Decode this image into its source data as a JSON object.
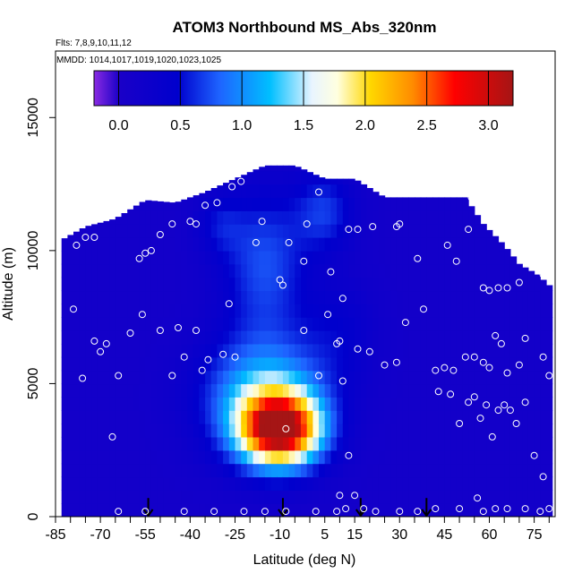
{
  "chart_data": {
    "type": "heatmap",
    "title": "ATOM3 Northbound MS_Abs_320nm",
    "subtitle_flights": "Flts: 7,8,9,10,11,12",
    "subtitle_dates": "MMDD: 1014,1017,1019,1020,1023,1025",
    "xlabel": "Latitude (deg N)",
    "ylabel": "Altitude (m)",
    "xlim": [
      -85,
      82
    ],
    "ylim": [
      0,
      17500
    ],
    "x_ticks": [
      -85,
      -70,
      -55,
      -40,
      -25,
      -10,
      5,
      15,
      30,
      45,
      60,
      75
    ],
    "y_ticks": [
      0,
      5000,
      10000,
      15000
    ],
    "colorbar": {
      "min": -0.2,
      "max": 3.2,
      "ticks": [
        0.0,
        0.5,
        1.0,
        1.5,
        2.0,
        2.5,
        3.0
      ],
      "tick_labels": [
        "0.0",
        "0.5",
        "1.0",
        "1.5",
        "2.0",
        "2.5",
        "3.0"
      ]
    },
    "arrows_latitude": [
      -54,
      -9,
      17,
      39
    ],
    "field_summary": [
      {
        "region": "plume core",
        "lat_range": [
          -22,
          3
        ],
        "alt_range": [
          2000,
          4500
        ],
        "value": 3.0
      },
      {
        "region": "plume halo",
        "lat_range": [
          -40,
          10
        ],
        "alt_range": [
          500,
          5500
        ],
        "value": 1.5
      },
      {
        "region": "upper tropical band",
        "lat_range": [
          -20,
          10
        ],
        "alt_range": [
          6000,
          13000
        ],
        "value": 1.0
      },
      {
        "region": "background",
        "lat_range": [
          -83,
          80
        ],
        "alt_range": [
          0,
          11000
        ],
        "value": 0.1
      }
    ],
    "sample_points": [
      [
        -79,
        7800
      ],
      [
        -76,
        5200
      ],
      [
        -72,
        6600
      ],
      [
        -70,
        6200
      ],
      [
        -68,
        6500
      ],
      [
        -66,
        3000
      ],
      [
        -64,
        5300
      ],
      [
        -60,
        6900
      ],
      [
        -56,
        7600
      ],
      [
        -50,
        7000
      ],
      [
        -46,
        5300
      ],
      [
        -44,
        7100
      ],
      [
        -42,
        6000
      ],
      [
        -38,
        7000
      ],
      [
        -36,
        5500
      ],
      [
        -34,
        5900
      ],
      [
        -29,
        6100
      ],
      [
        -27,
        8000
      ],
      [
        -25,
        6000
      ],
      [
        -78,
        10200
      ],
      [
        -75,
        10500
      ],
      [
        -72,
        10500
      ],
      [
        -57,
        9700
      ],
      [
        -55,
        9900
      ],
      [
        -53,
        10000
      ],
      [
        -50,
        10600
      ],
      [
        -46,
        11000
      ],
      [
        -40,
        11100
      ],
      [
        -38,
        11000
      ],
      [
        -35,
        11700
      ],
      [
        -31,
        11800
      ],
      [
        -26,
        12400
      ],
      [
        -23,
        12600
      ],
      [
        -18,
        10300
      ],
      [
        -16,
        11100
      ],
      [
        -10,
        8900
      ],
      [
        -9,
        8700
      ],
      [
        -7,
        10300
      ],
      [
        -2,
        9600
      ],
      [
        -1,
        11000
      ],
      [
        3,
        12200
      ],
      [
        7,
        9200
      ],
      [
        11,
        8200
      ],
      [
        13,
        10800
      ],
      [
        16,
        10800
      ],
      [
        21,
        10900
      ],
      [
        25,
        12800
      ],
      [
        29,
        10900
      ],
      [
        30,
        11000
      ],
      [
        36,
        9700
      ],
      [
        40,
        12300
      ],
      [
        46,
        10200
      ],
      [
        49,
        9600
      ],
      [
        53,
        10800
      ],
      [
        54,
        12000
      ],
      [
        58,
        8600
      ],
      [
        60,
        8500
      ],
      [
        63,
        8600
      ],
      [
        66,
        8600
      ],
      [
        70,
        8800
      ],
      [
        78,
        9100
      ],
      [
        -55,
        12400
      ],
      [
        -58,
        11900
      ],
      [
        -60,
        12200
      ],
      [
        -2,
        7000
      ],
      [
        6,
        7600
      ],
      [
        9,
        6500
      ],
      [
        10,
        6600
      ],
      [
        16,
        6300
      ],
      [
        20,
        6200
      ],
      [
        25,
        5700
      ],
      [
        29,
        5800
      ],
      [
        32,
        7300
      ],
      [
        38,
        7800
      ],
      [
        42,
        5500
      ],
      [
        45,
        5600
      ],
      [
        48,
        5500
      ],
      [
        52,
        6000
      ],
      [
        55,
        6000
      ],
      [
        58,
        5800
      ],
      [
        60,
        5600
      ],
      [
        62,
        6800
      ],
      [
        64,
        6500
      ],
      [
        66,
        5400
      ],
      [
        70,
        5700
      ],
      [
        72,
        6700
      ],
      [
        78,
        6000
      ],
      [
        80,
        5300
      ],
      [
        -8,
        3300
      ],
      [
        3,
        5300
      ],
      [
        11,
        5100
      ],
      [
        13,
        2300
      ],
      [
        43,
        4700
      ],
      [
        47,
        4600
      ],
      [
        50,
        3500
      ],
      [
        53,
        4300
      ],
      [
        55,
        4500
      ],
      [
        57,
        3700
      ],
      [
        59,
        4200
      ],
      [
        61,
        3000
      ],
      [
        63,
        4000
      ],
      [
        65,
        4200
      ],
      [
        67,
        4000
      ],
      [
        69,
        3500
      ],
      [
        72,
        4300
      ],
      [
        75,
        2300
      ],
      [
        78,
        1500
      ],
      [
        80,
        300
      ],
      [
        -64,
        200
      ],
      [
        -55,
        200
      ],
      [
        -42,
        200
      ],
      [
        -32,
        200
      ],
      [
        -22,
        200
      ],
      [
        -15,
        200
      ],
      [
        -8,
        200
      ],
      [
        2,
        200
      ],
      [
        9,
        200
      ],
      [
        10,
        800
      ],
      [
        12,
        300
      ],
      [
        15,
        800
      ],
      [
        18,
        300
      ],
      [
        22,
        200
      ],
      [
        30,
        200
      ],
      [
        36,
        200
      ],
      [
        42,
        300
      ],
      [
        50,
        300
      ],
      [
        56,
        700
      ],
      [
        58,
        200
      ],
      [
        62,
        300
      ],
      [
        66,
        300
      ],
      [
        72,
        300
      ],
      [
        77,
        200
      ]
    ]
  }
}
